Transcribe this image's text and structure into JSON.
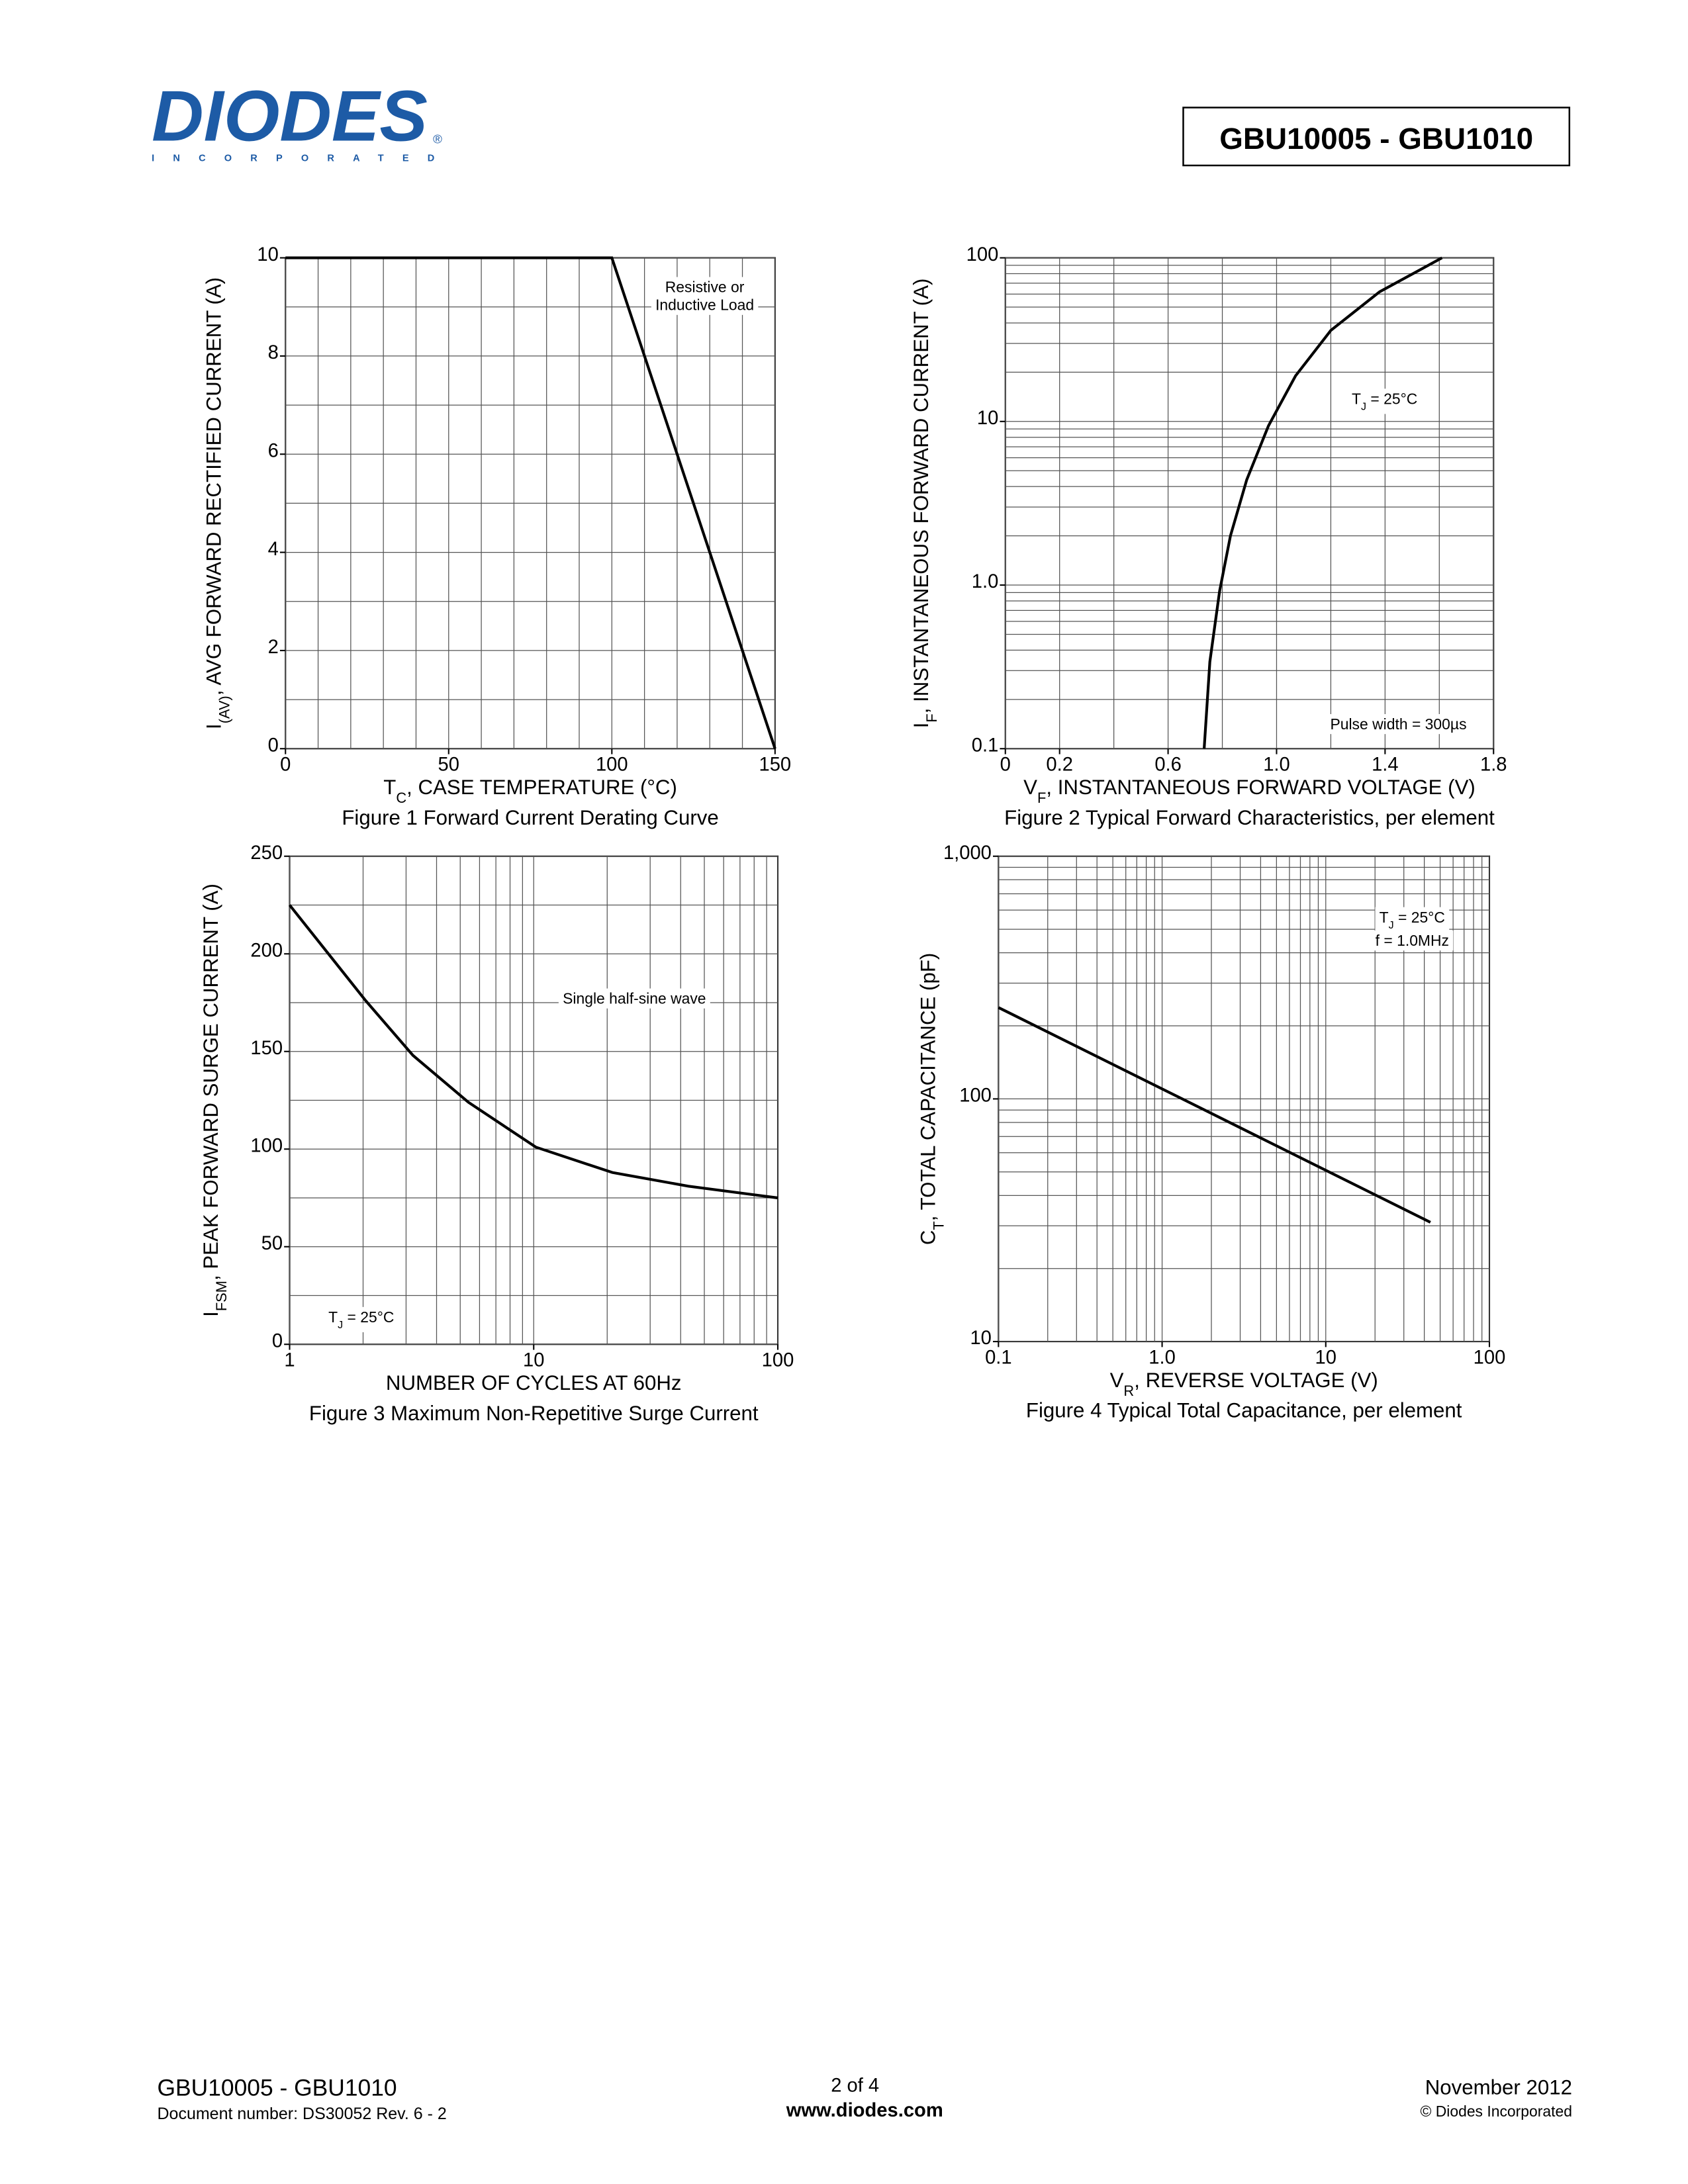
{
  "header": {
    "logo": "DIODES",
    "logo_mark": "®",
    "logo_sub": "INCORPORATED",
    "part": "GBU10005 - GBU1010"
  },
  "chart_data": [
    {
      "type": "line",
      "caption": "Figure 1  Forward Current Derating Curve",
      "xlabel": [
        "T",
        "C",
        ", CASE TEMPERATURE (°C)"
      ],
      "ylabel": [
        "I",
        "(AV)",
        ", AVG FORWARD RECTIFIED CURRENT (A)"
      ],
      "xlog": false,
      "ylog": false,
      "xlim": [
        0,
        150
      ],
      "ylim": [
        0,
        10
      ],
      "xticks": [
        0,
        50,
        100,
        150
      ],
      "yticks": [
        0,
        2,
        4,
        6,
        8,
        10
      ],
      "xgrid": [
        0,
        10,
        20,
        30,
        40,
        50,
        60,
        70,
        80,
        90,
        100,
        110,
        120,
        130,
        140,
        150
      ],
      "ygrid": [
        0,
        1,
        2,
        3,
        4,
        5,
        6,
        7,
        8,
        9,
        10
      ],
      "annotations": [
        "Resistive or",
        "Inductive Load"
      ],
      "color": "#000000",
      "x": [
        0,
        100,
        150
      ],
      "values": [
        10,
        10,
        0
      ]
    },
    {
      "type": "line",
      "caption": "Figure 2  Typical Forward Characteristics, per element",
      "xlabel": [
        "V",
        "F",
        ", INSTANTANEOUS FORWARD VOLTAGE (V)"
      ],
      "ylabel": [
        "I",
        "F",
        ", INSTANTANEOUS FORWARD CURRENT (A)"
      ],
      "xlog": false,
      "ylog": true,
      "xlim": [
        0,
        1.8
      ],
      "ylim": [
        0.1,
        100
      ],
      "xticks": [
        0,
        0.2,
        0.6,
        {
          "value": 1,
          "label": "1.0"
        },
        1.4,
        1.8
      ],
      "yticks": [
        0.1,
        {
          "value": 1,
          "label": "1.0"
        },
        10,
        100
      ],
      "xgrid": [
        0,
        0.2,
        0.4,
        0.6,
        0.8,
        1,
        1.2,
        1.4,
        1.6,
        1.8
      ],
      "ygrid": [
        0.1,
        0.2,
        0.3,
        0.4,
        0.5,
        0.6,
        0.7,
        0.8,
        0.9,
        1,
        2,
        3,
        4,
        5,
        6,
        7,
        8,
        9,
        10,
        20,
        30,
        40,
        50,
        60,
        70,
        80,
        90,
        100
      ],
      "annotations": [
        [
          "T",
          "J",
          " = 25°C"
        ],
        "Pulse width = 300µs"
      ],
      "color": "#000000",
      "x": [
        0.733,
        0.754,
        0.79,
        0.83,
        0.89,
        0.97,
        1.07,
        1.2,
        1.38,
        1.61
      ],
      "values": [
        0.1,
        0.34,
        0.92,
        2.0,
        4.4,
        9.4,
        19,
        36,
        62,
        100
      ]
    },
    {
      "type": "line",
      "caption": "Figure 3  Maximum Non-Repetitive Surge Current",
      "xlabel": "NUMBER OF CYCLES AT 60Hz",
      "ylabel": [
        "I",
        "FSM",
        ", PEAK FORWARD SURGE CURRENT (A)"
      ],
      "xlog": true,
      "ylog": false,
      "xlim": [
        1,
        100
      ],
      "ylim": [
        0,
        250
      ],
      "xticks": [
        1,
        10,
        100
      ],
      "yticks": [
        0,
        50,
        100,
        150,
        200,
        250
      ],
      "xgrid": [
        1,
        2,
        3,
        4,
        5,
        6,
        7,
        8,
        9,
        10,
        20,
        30,
        40,
        50,
        60,
        70,
        80,
        90,
        100
      ],
      "ygrid": [
        0,
        25,
        50,
        75,
        100,
        125,
        150,
        175,
        200,
        225,
        250
      ],
      "annotations": [
        "Single half-sine wave",
        [
          "T",
          "J",
          " = 25°C"
        ]
      ],
      "color": "#000000",
      "x": [
        1,
        2.05,
        3.2,
        5.4,
        10.2,
        21,
        43,
        100
      ],
      "values": [
        225,
        176,
        148,
        124,
        101,
        88,
        81,
        75
      ]
    },
    {
      "type": "line",
      "caption": "Figure 4  Typical Total Capacitance, per element",
      "xlabel": [
        "V",
        "R",
        ", REVERSE VOLTAGE (V)"
      ],
      "ylabel": [
        "C",
        "T",
        ", TOTAL CAPACITANCE (pF)"
      ],
      "xlog": true,
      "ylog": true,
      "xlim": [
        0.1,
        100
      ],
      "ylim": [
        10,
        1000
      ],
      "xticks": [
        0.1,
        {
          "value": 1,
          "label": "1.0"
        },
        10,
        100
      ],
      "yticks": [
        10,
        100,
        {
          "value": 1000,
          "label": "1,000"
        }
      ],
      "xgrid": [
        0.1,
        0.2,
        0.3,
        0.4,
        0.5,
        0.6,
        0.7,
        0.8,
        0.9,
        1,
        2,
        3,
        4,
        5,
        6,
        7,
        8,
        9,
        10,
        20,
        30,
        40,
        50,
        60,
        70,
        80,
        90,
        100
      ],
      "ygrid": [
        10,
        20,
        30,
        40,
        50,
        60,
        70,
        80,
        90,
        100,
        200,
        300,
        400,
        500,
        600,
        700,
        800,
        900,
        1000
      ],
      "annotations": [
        [
          "T",
          "J",
          " = 25°C"
        ],
        "f = 1.0MHz"
      ],
      "color": "#000000",
      "x": [
        0.1,
        43.6
      ],
      "values": [
        238,
        31
      ]
    }
  ],
  "footer": {
    "part": "GBU10005 - GBU1010",
    "doc": "Document number: DS30052 Rev. 6 - 2",
    "page": "2 of 4",
    "site": "www.diodes.com",
    "date": "November 2012",
    "copyright": "© Diodes Incorporated"
  }
}
